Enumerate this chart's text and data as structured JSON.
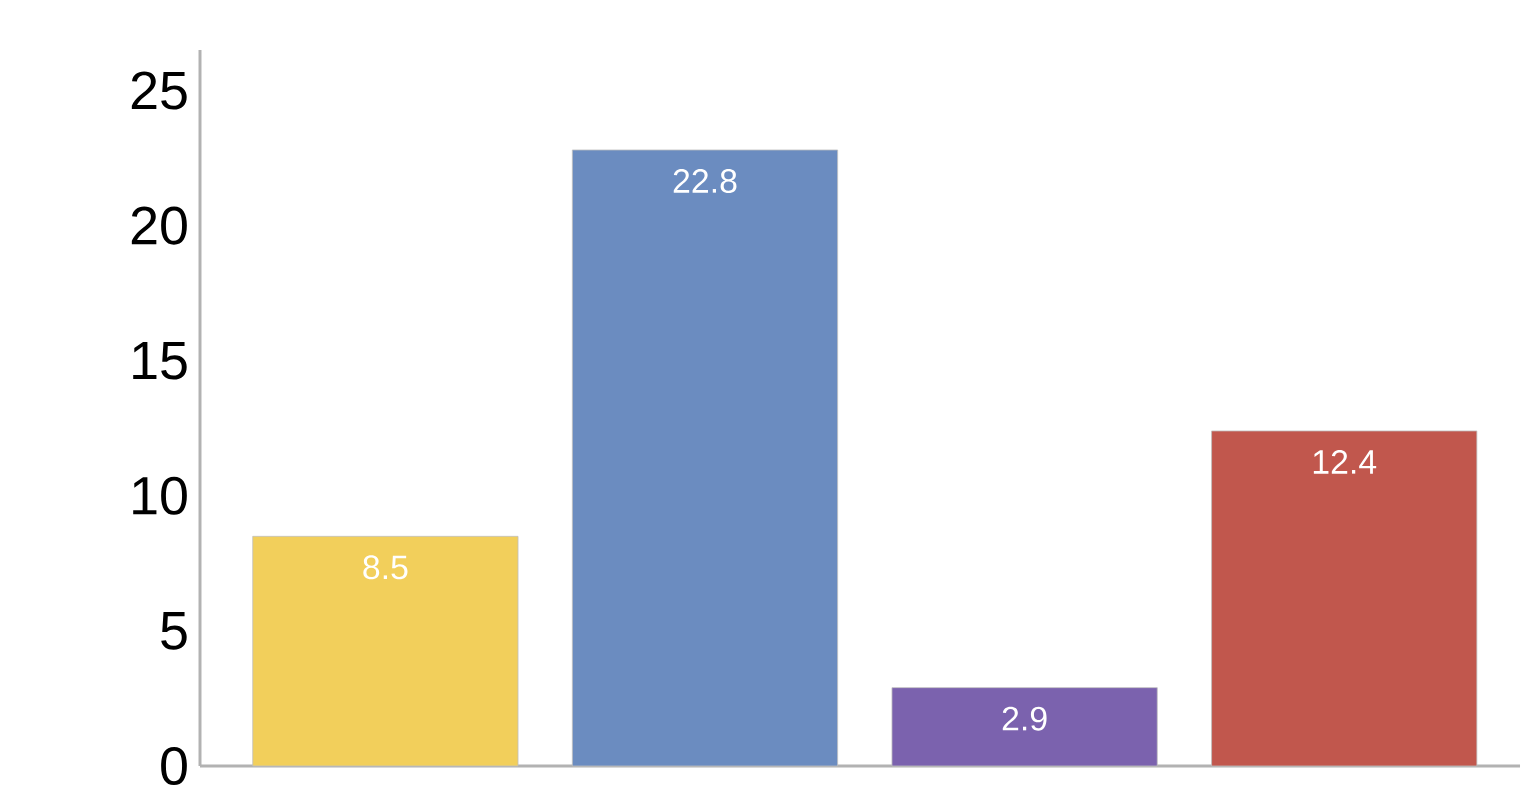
{
  "chart_data": {
    "type": "bar",
    "categories": [
      null,
      null,
      null,
      null
    ],
    "values": [
      8.5,
      22.8,
      2.9,
      12.4
    ],
    "colors": [
      "#f2cf5b",
      "#6b8cc0",
      "#7b62ae",
      "#c1574d"
    ],
    "ylim": [
      0,
      26.5
    ],
    "yticks": [
      0,
      5,
      10,
      15,
      20,
      25
    ],
    "data_labels": true,
    "grid": false
  }
}
